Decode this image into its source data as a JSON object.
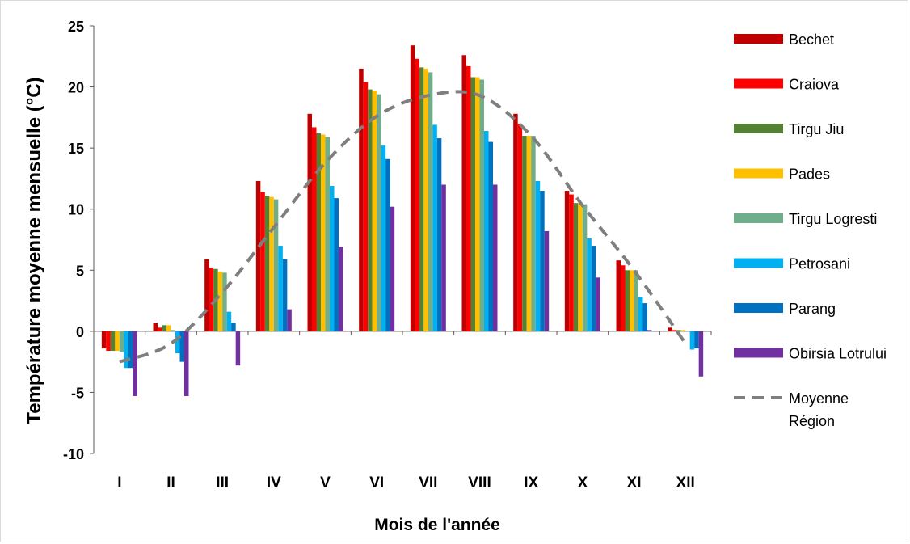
{
  "chart_data": {
    "type": "bar",
    "title": "",
    "xlabel": "Mois de l'année",
    "ylabel": "Température moyenne  mensuelle (°C)",
    "ylim": [
      -10,
      25
    ],
    "yticks": [
      -10,
      -5,
      0,
      5,
      10,
      15,
      20,
      25
    ],
    "grid": false,
    "legend_position": "right",
    "categories": [
      "I",
      "II",
      "III",
      "IV",
      "V",
      "VI",
      "VII",
      "VIII",
      "IX",
      "X",
      "XI",
      "XII"
    ],
    "series": [
      {
        "name": "Bechet",
        "color": "#c00000",
        "values": [
          -1.4,
          0.7,
          5.9,
          12.3,
          17.8,
          21.5,
          23.4,
          22.6,
          17.8,
          11.5,
          5.8,
          0.3
        ]
      },
      {
        "name": "Craiova",
        "color": "#ff0000",
        "values": [
          -1.6,
          0.3,
          5.2,
          11.4,
          16.7,
          20.4,
          22.3,
          21.7,
          17.0,
          11.2,
          5.4,
          0.1
        ]
      },
      {
        "name": "Tirgu Jiu",
        "color": "#548235",
        "values": [
          -1.6,
          0.5,
          5.1,
          11.1,
          16.2,
          19.8,
          21.6,
          20.8,
          16.0,
          10.5,
          5.0,
          0.1
        ]
      },
      {
        "name": "Pades",
        "color": "#ffc000",
        "values": [
          -1.6,
          0.5,
          4.9,
          11.0,
          16.1,
          19.7,
          21.5,
          20.8,
          16.0,
          10.5,
          5.0,
          0.1
        ]
      },
      {
        "name": "Tirgu Logresti",
        "color": "#70ad8b",
        "values": [
          -1.7,
          0.1,
          4.8,
          10.8,
          15.9,
          19.4,
          21.2,
          20.6,
          16.0,
          10.4,
          5.0,
          0.0
        ]
      },
      {
        "name": "Petrosani",
        "color": "#00b0f0",
        "values": [
          -3.0,
          -1.8,
          1.6,
          7.0,
          11.9,
          15.2,
          16.9,
          16.4,
          12.3,
          7.6,
          2.8,
          -1.5
        ]
      },
      {
        "name": "Parang",
        "color": "#0070c0",
        "values": [
          -3.0,
          -2.5,
          0.7,
          5.9,
          10.9,
          14.1,
          15.8,
          15.5,
          11.5,
          7.0,
          2.3,
          -1.4
        ]
      },
      {
        "name": "Obirsia Lotrului",
        "color": "#7030a0",
        "values": [
          -5.3,
          -5.3,
          -2.8,
          1.8,
          6.9,
          10.2,
          12.0,
          12.0,
          8.2,
          4.4,
          0.1,
          -3.7
        ]
      }
    ],
    "trend": {
      "name": "Moyenne Région",
      "color": "#7f7f7f",
      "style": "dashed",
      "values": [
        -2.5,
        -1.0,
        3.2,
        8.5,
        13.8,
        17.6,
        19.3,
        19.3,
        16.0,
        10.3,
        5.0,
        -1.0
      ]
    }
  }
}
